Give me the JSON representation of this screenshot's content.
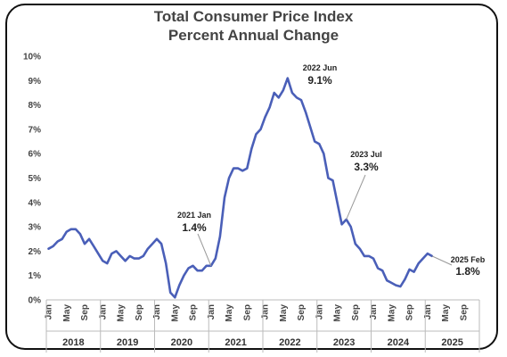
{
  "chart_data": {
    "type": "line",
    "title": "Total Consumer Price Index",
    "subtitle": "Percent Annual Change",
    "ylim": [
      0,
      10
    ],
    "y_ticks": [
      "0%",
      "1%",
      "2%",
      "3%",
      "4%",
      "5%",
      "6%",
      "7%",
      "8%",
      "9%",
      "10%"
    ],
    "month_ticks": [
      "Jan",
      "May",
      "Sep"
    ],
    "years": [
      "2018",
      "2019",
      "2020",
      "2021",
      "2022",
      "2023",
      "2024",
      "2025"
    ],
    "series": [
      {
        "color": "#4a5fb8",
        "start": "2018 Jan",
        "values": [
          2.1,
          2.2,
          2.4,
          2.5,
          2.8,
          2.9,
          2.9,
          2.7,
          2.3,
          2.5,
          2.2,
          1.9,
          1.6,
          1.5,
          1.9,
          2.0,
          1.8,
          1.6,
          1.8,
          1.7,
          1.7,
          1.8,
          2.1,
          2.3,
          2.5,
          2.3,
          1.5,
          0.3,
          0.1,
          0.6,
          1.0,
          1.3,
          1.4,
          1.2,
          1.2,
          1.4,
          1.4,
          1.7,
          2.6,
          4.2,
          5.0,
          5.4,
          5.4,
          5.3,
          5.4,
          6.2,
          6.8,
          7.0,
          7.5,
          7.9,
          8.5,
          8.3,
          8.6,
          9.1,
          8.5,
          8.3,
          8.2,
          7.7,
          7.1,
          6.5,
          6.4,
          6.0,
          5.0,
          4.9,
          4.0,
          3.1,
          3.3,
          3.0,
          2.3,
          2.1,
          1.8,
          1.8,
          1.7,
          1.3,
          1.2,
          0.8,
          0.7,
          0.6,
          0.55,
          0.85,
          1.25,
          1.15,
          1.5,
          1.7,
          1.9,
          1.8
        ]
      }
    ],
    "annotations": [
      {
        "date": "2021 Jan",
        "value": "1.4%"
      },
      {
        "date": "2022 Jun",
        "value": "9.1%"
      },
      {
        "date": "2023 Jul",
        "value": "3.3%"
      },
      {
        "date": "2025 Feb",
        "value": "1.8%"
      }
    ]
  }
}
